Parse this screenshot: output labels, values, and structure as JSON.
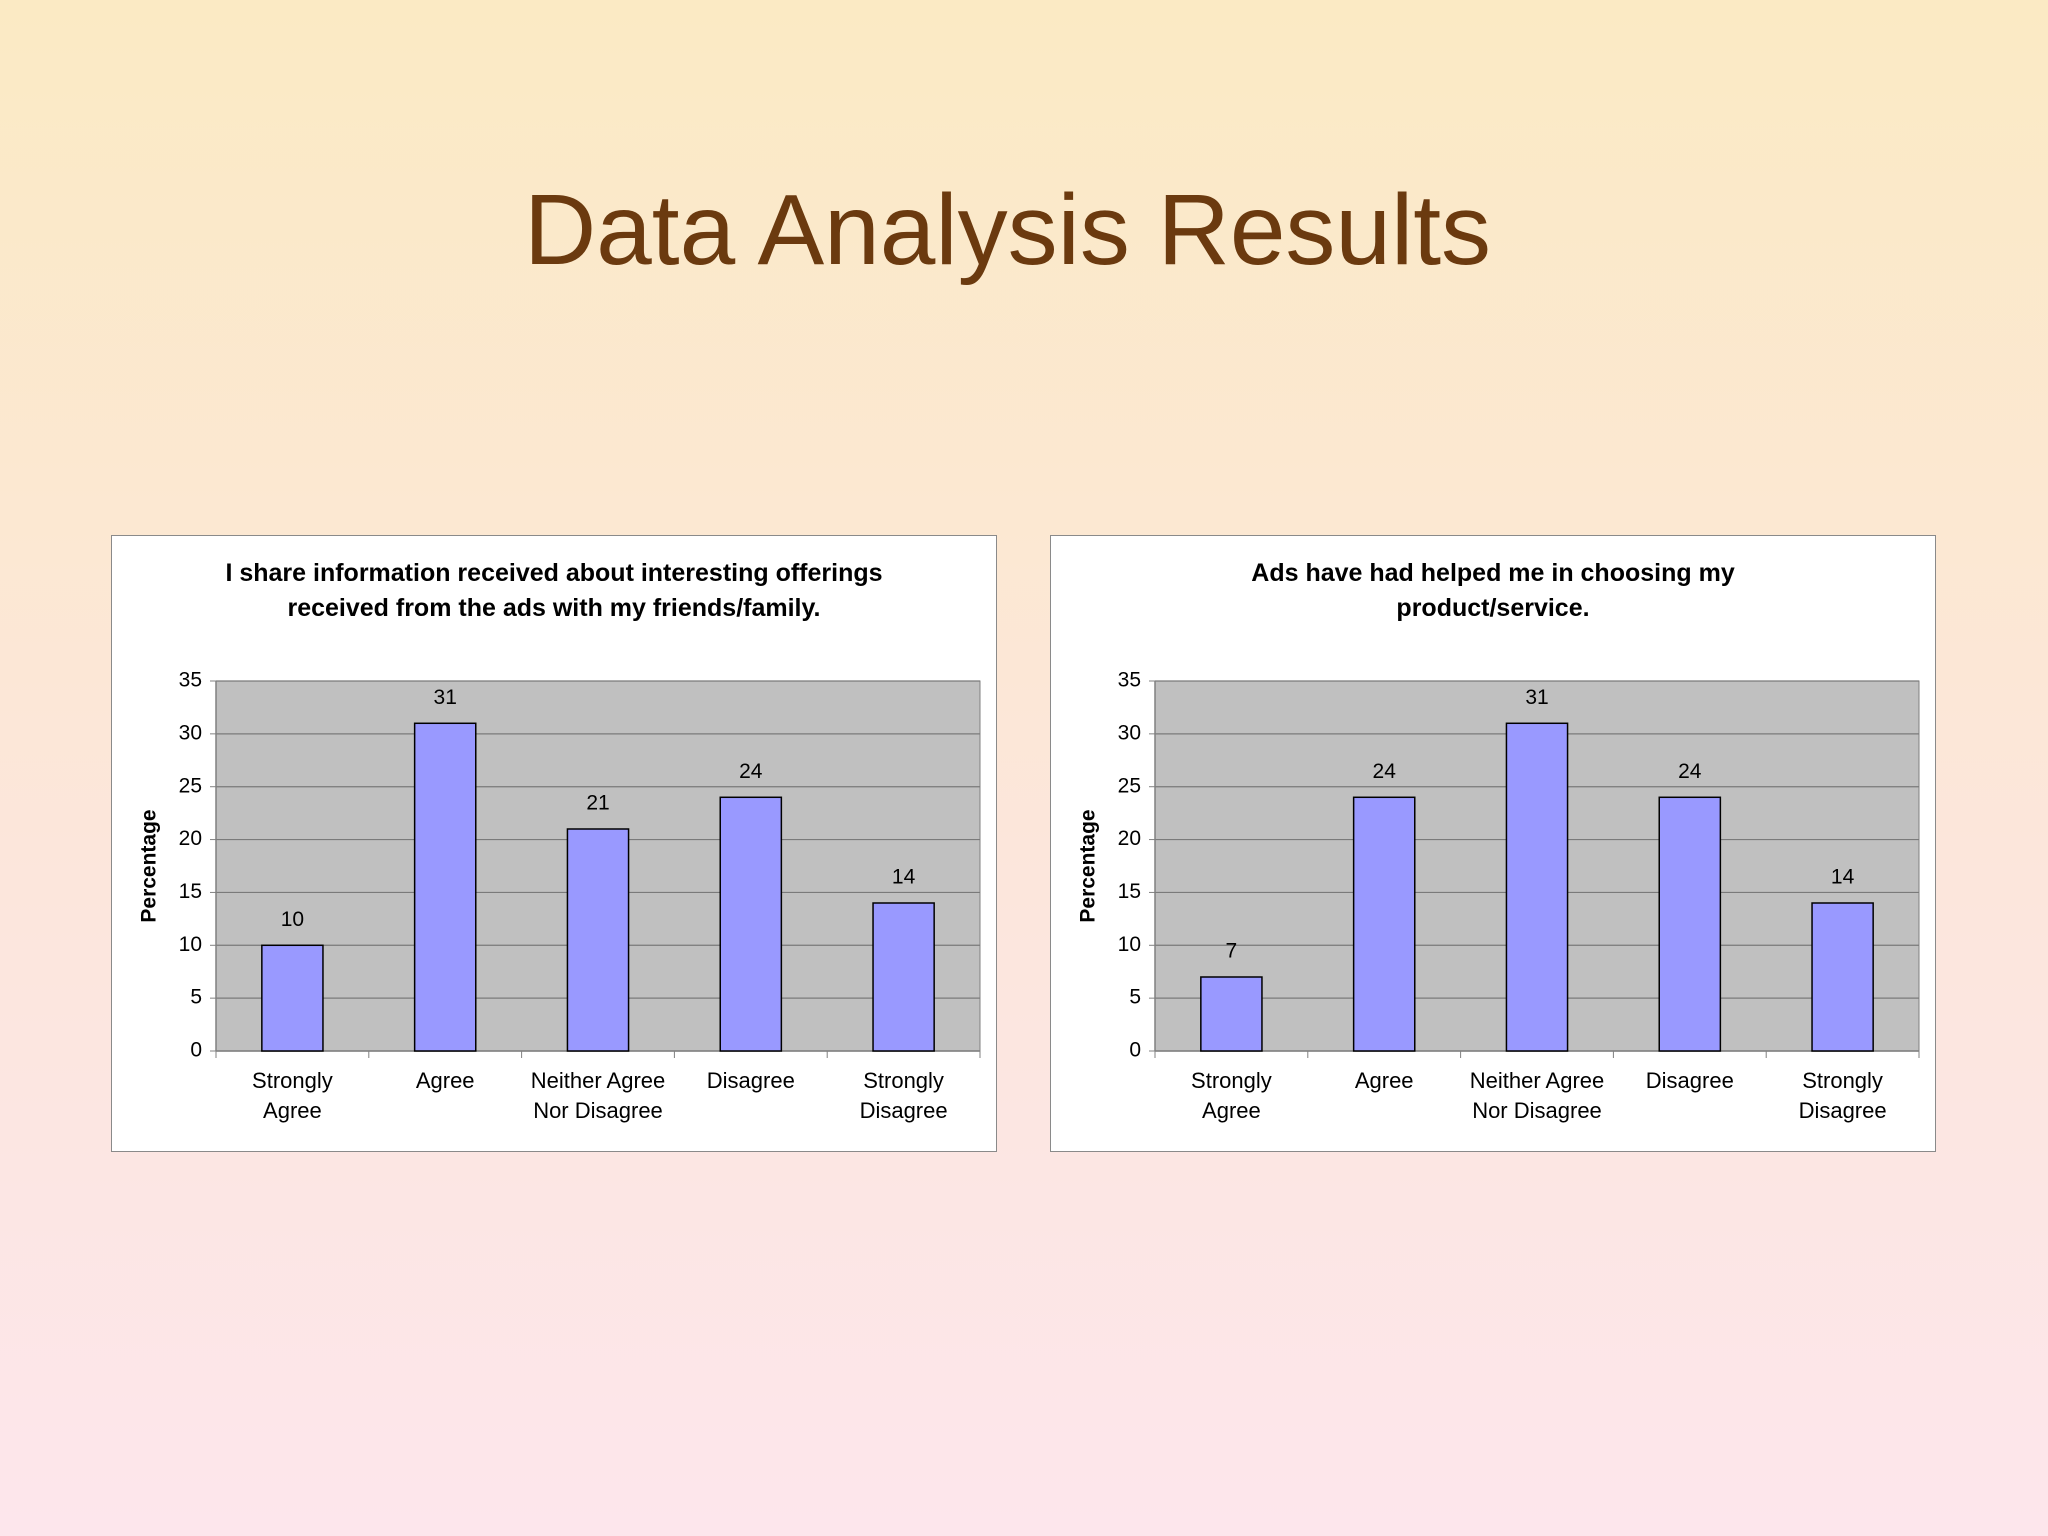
{
  "title": "Data Analysis Results",
  "chart_data": [
    {
      "type": "bar",
      "title": "I share information received about interesting offerings received from the ads with my friends/family.",
      "y_label": "Percentage",
      "categories": [
        "Strongly\nAgree",
        "Agree",
        "Neither Agree\nNor Disagree",
        "Disagree",
        "Strongly\nDisagree"
      ],
      "values": [
        10,
        31,
        21,
        24,
        14
      ],
      "color": "#9999ff",
      "ylim": [
        0,
        35
      ],
      "yticks": [
        0,
        5,
        10,
        15,
        20,
        25,
        30,
        35
      ],
      "grid": true
    },
    {
      "type": "bar",
      "title": "Ads have had helped me in choosing my product/service.",
      "y_label": "Percentage",
      "categories": [
        "Strongly\nAgree",
        "Agree",
        "Neither Agree\nNor Disagree",
        "Disagree",
        "Strongly\nDisagree"
      ],
      "values": [
        7,
        24,
        31,
        24,
        14
      ],
      "color": "#9999ff",
      "ylim": [
        0,
        35
      ],
      "yticks": [
        0,
        5,
        10,
        15,
        20,
        25,
        30,
        35
      ],
      "grid": true
    }
  ]
}
